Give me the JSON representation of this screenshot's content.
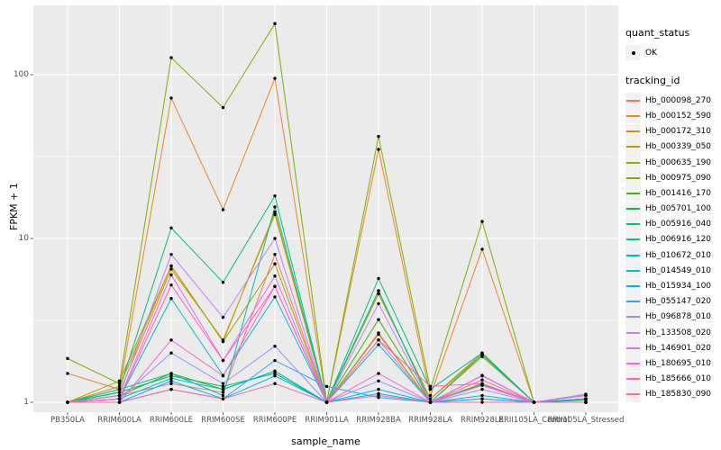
{
  "figure": {
    "x_axis_title": "sample_name",
    "y_axis_title": "FPKM + 1"
  },
  "chart_data": {
    "type": "line",
    "xlabel": "sample_name",
    "ylabel": "FPKM + 1",
    "y_scale": "log10",
    "y_ticks": [
      1,
      10,
      100
    ],
    "y_minor_ticks": [
      3.1623,
      31.623
    ],
    "ylim": [
      0.87,
      270
    ],
    "grid": true,
    "legend_position": "right",
    "panel_color": "#EBEBEB",
    "grid_color": "#FFFFFF",
    "point_color": "#000000",
    "quant_status": {
      "title": "quant_status",
      "items": [
        "OK"
      ]
    },
    "tracking_title": "tracking_id",
    "categories": [
      "PB350LA",
      "RRIM600LA",
      "RRIM600LE",
      "RRIM600SE",
      "RRIM600PE",
      "RRIM901LA",
      "RRIM928BA",
      "RRIM928LA",
      "RRIM928LE",
      "RRII105LA_Control",
      "RRII105LA_Stressed"
    ],
    "series": [
      {
        "name": "Hb_000098_270",
        "color": "#F8766D",
        "values": [
          1.0,
          1.1,
          1.3,
          1.15,
          8.0,
          1.0,
          2.65,
          1.0,
          1.37,
          1.0,
          1.0
        ]
      },
      {
        "name": "Hb_000152_590",
        "color": "#E88526",
        "values": [
          1.5,
          1.2,
          72,
          15,
          95,
          1.0,
          35,
          1.1,
          8.6,
          1.0,
          1.0
        ]
      },
      {
        "name": "Hb_000172_310",
        "color": "#D89000",
        "values": [
          1.0,
          1.15,
          6.5,
          2.4,
          14,
          1.0,
          4.6,
          1.05,
          1.95,
          1.0,
          1.0
        ]
      },
      {
        "name": "Hb_000339_050",
        "color": "#C09B00",
        "values": [
          1.0,
          1.35,
          6.8,
          2.35,
          14.5,
          1.0,
          4.6,
          1.05,
          2.0,
          1.0,
          1.0
        ]
      },
      {
        "name": "Hb_000635_190",
        "color": "#A3A500",
        "values": [
          1.0,
          1.25,
          6.8,
          2.35,
          7.0,
          1.0,
          2.6,
          1.0,
          1.9,
          1.0,
          1.0
        ]
      },
      {
        "name": "Hb_000975_090",
        "color": "#7CAE00",
        "values": [
          1.85,
          1.3,
          127,
          63,
          205,
          1.0,
          42,
          1.2,
          12.7,
          1.0,
          1.0
        ]
      },
      {
        "name": "Hb_001416_170",
        "color": "#39B600",
        "values": [
          1.0,
          1.1,
          1.5,
          1.2,
          1.55,
          1.0,
          3.2,
          1.0,
          1.3,
          1.0,
          1.05
        ]
      },
      {
        "name": "Hb_005701_100",
        "color": "#00BB4E",
        "values": [
          1.0,
          1.15,
          1.45,
          1.25,
          1.5,
          1.0,
          4.8,
          1.0,
          1.28,
          1.0,
          1.03
        ]
      },
      {
        "name": "Hb_005916_040",
        "color": "#00BF7D",
        "values": [
          1.0,
          1.2,
          11.6,
          5.4,
          18.2,
          1.0,
          5.7,
          1.2,
          2.0,
          1.0,
          1.05
        ]
      },
      {
        "name": "Hb_006916_120",
        "color": "#00C1A3",
        "values": [
          1.0,
          1.2,
          1.5,
          1.1,
          15.6,
          1.0,
          4.8,
          1.0,
          1.95,
          1.0,
          1.05
        ]
      },
      {
        "name": "Hb_010672_010",
        "color": "#00BFC4",
        "values": [
          1.0,
          1.05,
          4.3,
          1.46,
          4.4,
          1.0,
          2.25,
          1.0,
          1.27,
          1.0,
          1.05
        ]
      },
      {
        "name": "Hb_014549_010",
        "color": "#00BAE0",
        "values": [
          1.0,
          1.05,
          1.4,
          1.2,
          1.55,
          1.0,
          1.2,
          1.0,
          1.1,
          1.0,
          1.05
        ]
      },
      {
        "name": "Hb_015934_100",
        "color": "#00B0F6",
        "values": [
          1.0,
          1.0,
          1.35,
          1.05,
          1.45,
          1.0,
          1.13,
          1.0,
          1.05,
          1.0,
          1.1
        ]
      },
      {
        "name": "Hb_055147_020",
        "color": "#35A2FF",
        "values": [
          1.0,
          1.0,
          1.2,
          1.05,
          1.8,
          1.25,
          1.07,
          1.0,
          1.05,
          1.0,
          1.12
        ]
      },
      {
        "name": "Hb_096878_010",
        "color": "#9590FF",
        "values": [
          1.0,
          1.05,
          2.0,
          1.3,
          2.2,
          1.0,
          1.35,
          1.0,
          1.2,
          1.0,
          1.0
        ]
      },
      {
        "name": "Hb_133508_020",
        "color": "#C77CFF",
        "values": [
          1.0,
          1.1,
          8.0,
          3.3,
          10.0,
          1.0,
          4.0,
          1.0,
          1.46,
          1.0,
          1.12
        ]
      },
      {
        "name": "Hb_146901_020",
        "color": "#E76BF3",
        "values": [
          1.0,
          1.05,
          6.0,
          1.8,
          5.9,
          1.0,
          2.4,
          1.0,
          1.45,
          1.0,
          1.1
        ]
      },
      {
        "name": "Hb_180695_010",
        "color": "#FA62DB",
        "values": [
          1.0,
          1.0,
          2.4,
          1.45,
          5.1,
          1.0,
          1.5,
          1.0,
          1.27,
          1.0,
          1.0
        ]
      },
      {
        "name": "Hb_185666_010",
        "color": "#FF62BC",
        "values": [
          1.0,
          1.05,
          5.2,
          1.8,
          5.1,
          1.0,
          2.4,
          1.25,
          1.3,
          1.0,
          1.0
        ]
      },
      {
        "name": "Hb_185830_090",
        "color": "#FF6A98",
        "values": [
          1.0,
          1.0,
          1.2,
          1.05,
          1.3,
          1.0,
          1.1,
          1.0,
          1.0,
          1.0,
          1.0
        ]
      }
    ]
  }
}
